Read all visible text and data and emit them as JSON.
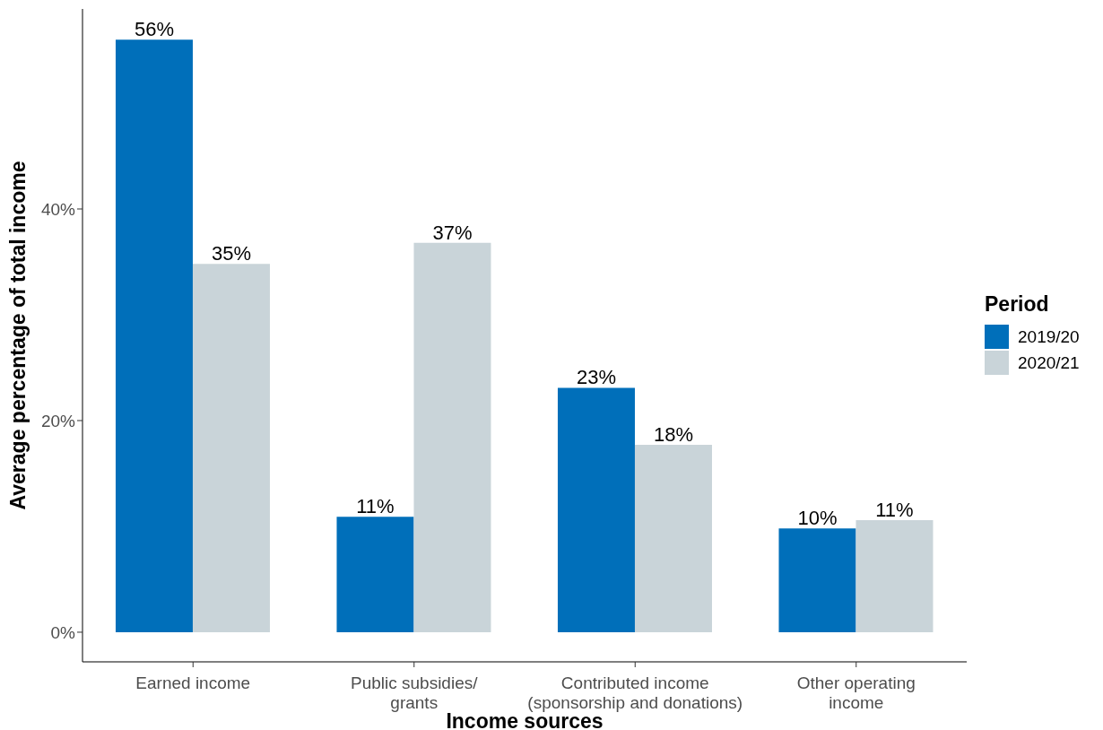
{
  "chart_data": {
    "type": "bar",
    "xlabel": "Income sources",
    "ylabel": "Average percentage of total income",
    "legend_title": "Period",
    "legend": "right",
    "grid": false,
    "categories": [
      "Earned income",
      "Public subsidies/\ngrants",
      "Contributed income\n(sponsorship and donations)",
      "Other operating\nincome"
    ],
    "ylim": [
      -2.8,
      58.9
    ],
    "yticks": [
      {
        "value": 0,
        "label": "0%"
      },
      {
        "value": 20,
        "label": "20%"
      },
      {
        "value": 40,
        "label": "40%"
      }
    ],
    "series": [
      {
        "name": "2019/20",
        "color": "#006fba",
        "values": [
          56.0,
          10.9,
          23.1,
          9.8
        ],
        "value_labels": [
          "56%",
          "11%",
          "23%",
          "10%"
        ]
      },
      {
        "name": "2020/21",
        "color": "#c9d4d9",
        "values": [
          34.8,
          36.8,
          17.7,
          10.6
        ],
        "value_labels": [
          "35%",
          "37%",
          "18%",
          "11%"
        ]
      }
    ]
  }
}
